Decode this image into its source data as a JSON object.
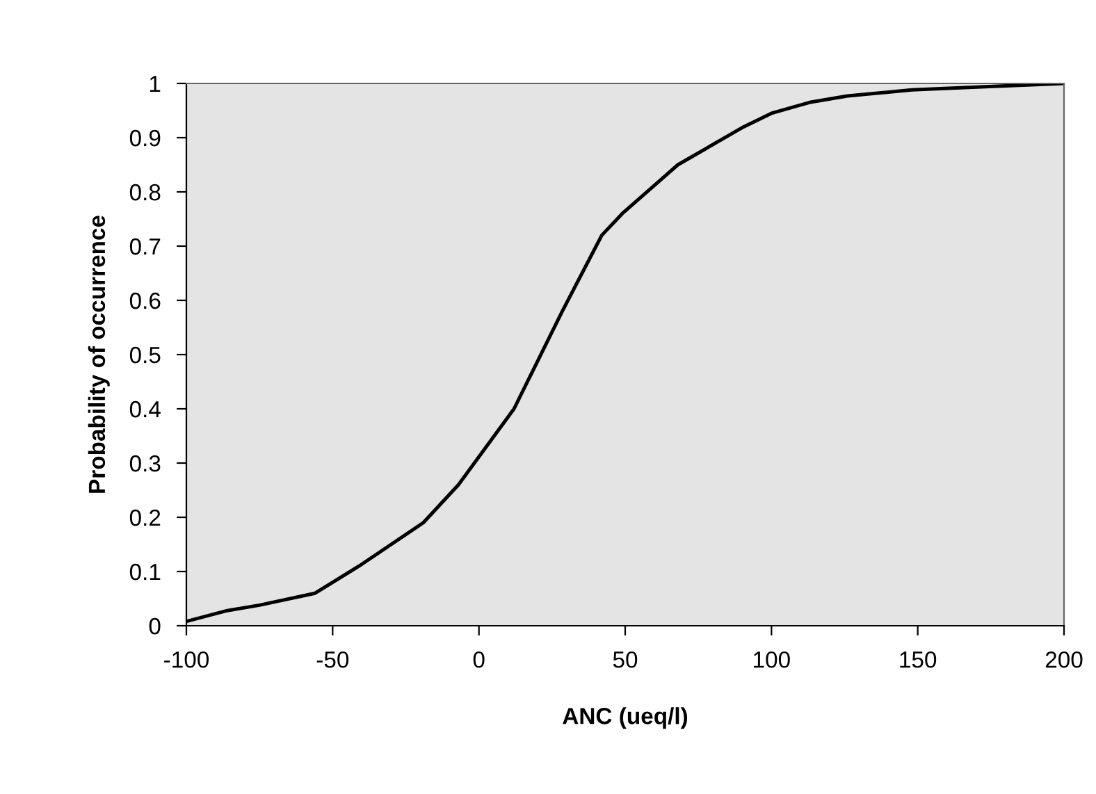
{
  "chart_data": {
    "type": "line",
    "xlabel": "ANC (ueq/l)",
    "ylabel": "Probability of occurrence",
    "series": [
      {
        "color": "#000000",
        "x": [
          -100,
          -86,
          -75,
          -56,
          -41,
          -19,
          -7,
          12,
          28.5,
          42,
          49,
          68,
          90.5,
          100,
          113,
          126,
          148,
          173,
          200
        ],
        "values": [
          0.008,
          0.028,
          0.038,
          0.06,
          0.11,
          0.19,
          0.26,
          0.4,
          0.58,
          0.72,
          0.76,
          0.85,
          0.92,
          0.945,
          0.965,
          0.977,
          0.988,
          0.994,
          1.0
        ]
      }
    ],
    "xlim": [
      -100,
      200
    ],
    "xticks": [
      -100,
      -50,
      0,
      50,
      100,
      150,
      200
    ],
    "ylim": [
      0,
      1
    ],
    "yticks": [
      0,
      0.1,
      0.2,
      0.3,
      0.4,
      0.5,
      0.6,
      0.7,
      0.8,
      0.9,
      1
    ],
    "grid": false,
    "marker": "none",
    "line_style": "solid"
  }
}
